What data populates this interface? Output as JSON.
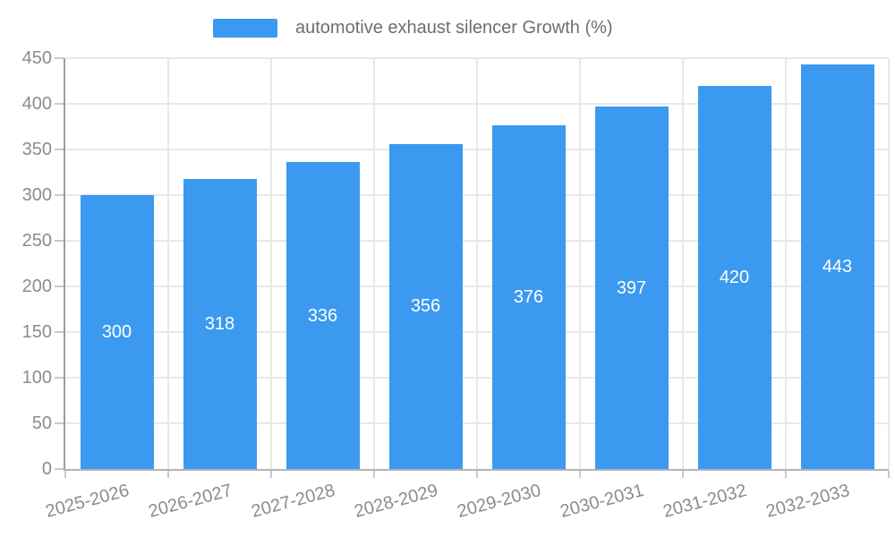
{
  "legend": {
    "label": "automotive exhaust silencer Growth (%)"
  },
  "chart_data": {
    "type": "bar",
    "title": "automotive exhaust silencer Growth (%)",
    "categories": [
      "2025-2026",
      "2026-2027",
      "2027-2028",
      "2028-2029",
      "2029-2030",
      "2030-2031",
      "2031-2032",
      "2032-2033"
    ],
    "series": [
      {
        "name": "automotive exhaust silencer Growth (%)",
        "values": [
          300,
          318,
          336,
          356,
          376,
          397,
          420,
          443
        ]
      }
    ],
    "values": [
      300,
      318,
      336,
      356,
      376,
      397,
      420,
      443
    ],
    "bar_labels": [
      "300",
      "318",
      "336",
      "356",
      "376",
      "397",
      "420",
      "443"
    ],
    "xlabel": "",
    "ylabel": "",
    "ylim": [
      0,
      450
    ],
    "yticks": [
      0,
      50,
      100,
      150,
      200,
      250,
      300,
      350,
      400,
      450
    ],
    "grid": true,
    "legend_position": "top",
    "x_tick_rotation_deg": -15
  },
  "colors": {
    "bar": "#3b9aef",
    "grid_line": "#e8e8e8",
    "y_axis_line": "#9e9e9e",
    "x_axis_line": "#b3b3b3",
    "tick_mark": "#c9c9c9",
    "tick_label": "#8c8c8c",
    "legend_text": "#6e6e6e",
    "value_label": "#ffffff",
    "background": "#ffffff"
  }
}
